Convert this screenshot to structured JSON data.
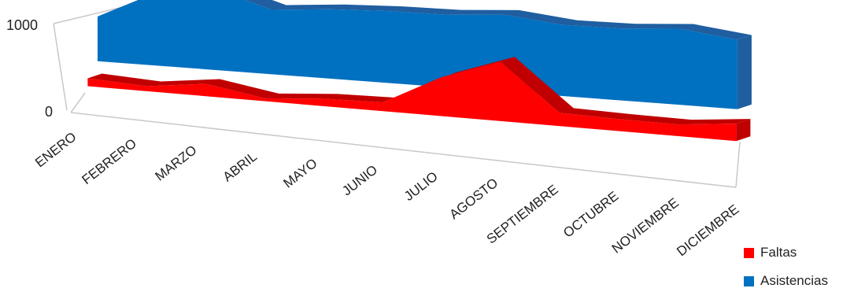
{
  "chart_data": {
    "type": "area",
    "categories": [
      "ENERO",
      "FEBRERO",
      "MARZO",
      "ABRIL",
      "MAYO",
      "JUNIO",
      "JULIO",
      "AGOSTO",
      "SEPTIEMBRE",
      "OCTUBRE",
      "NOVIEMBRE",
      "DICIEMBRE"
    ],
    "series": [
      {
        "name": "Faltas",
        "color": "#ff0000",
        "values": [
          95,
          60,
          150,
          35,
          90,
          105,
          470,
          720,
          160,
          145,
          140,
          210
        ]
      },
      {
        "name": "Asistencias",
        "color": "#0070c0",
        "values": [
          540,
          880,
          980,
          780,
          840,
          870,
          880,
          930,
          860,
          870,
          920,
          840
        ]
      }
    ],
    "y_tick_labels": [
      "1000",
      "0"
    ],
    "ylim": [
      0,
      1000
    ],
    "legend_position": "bottom-right",
    "grid": false,
    "projection": "3d-perspective"
  }
}
